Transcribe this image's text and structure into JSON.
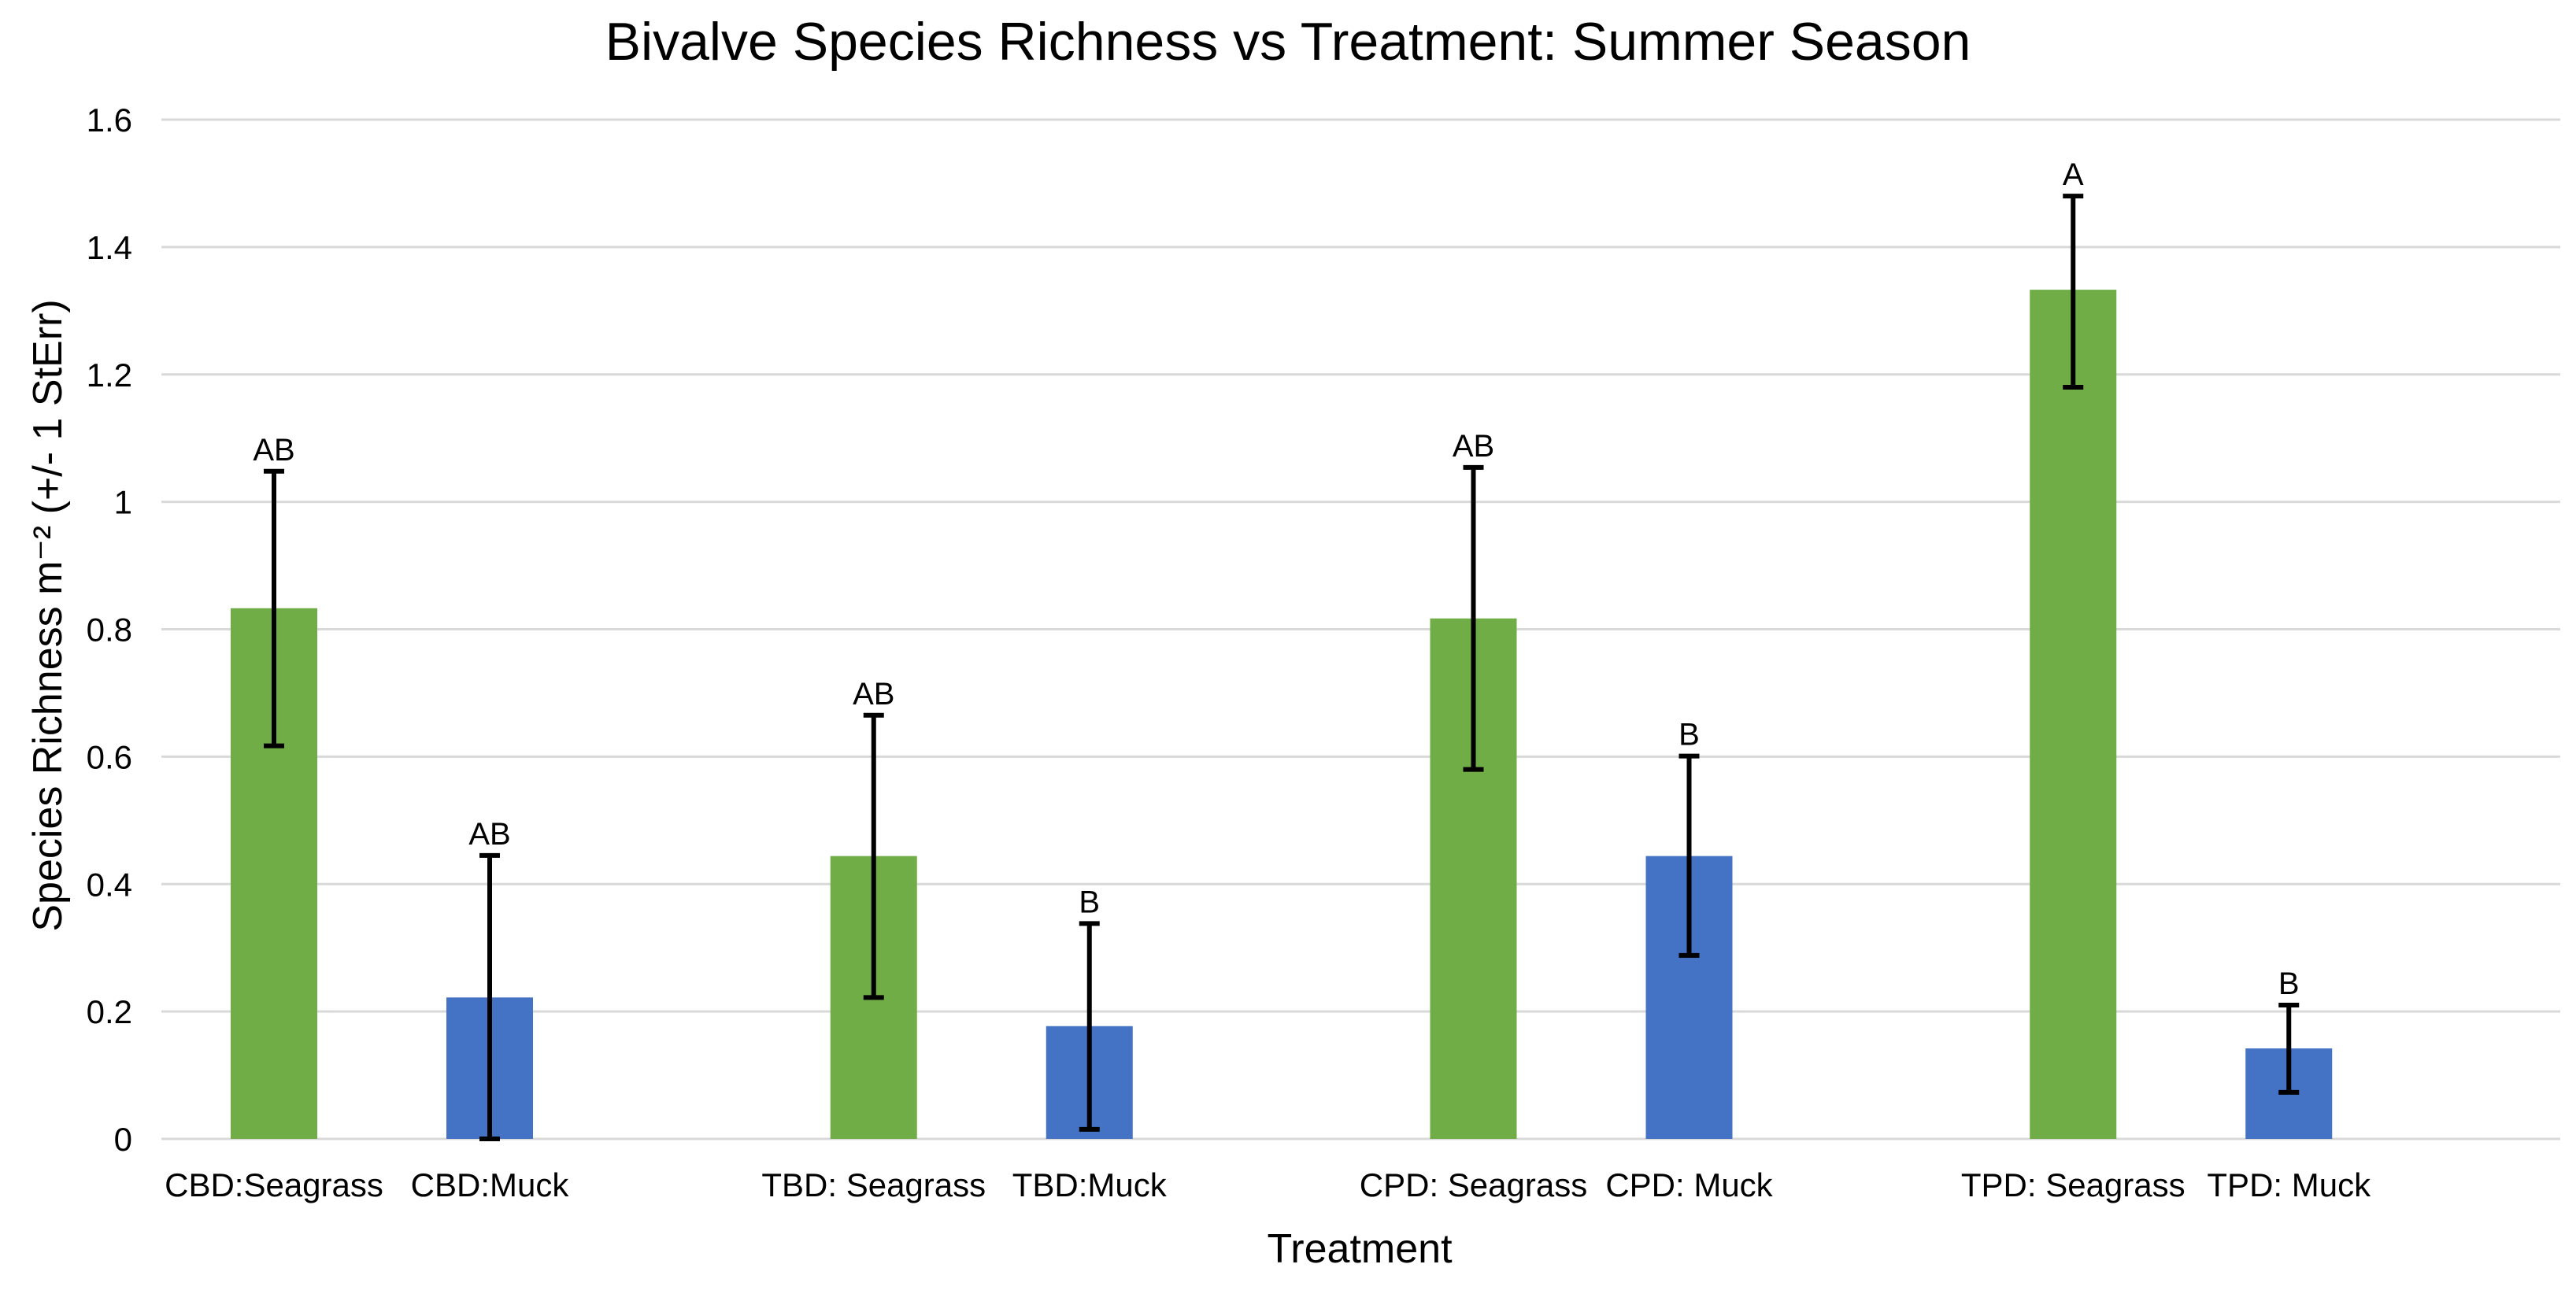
{
  "chart_data": {
    "type": "bar",
    "title": "Bivalve Species Richness vs Treatment: Summer Season",
    "xlabel": "Treatment",
    "ylabel": "Species Richness m⁻² (+/- 1 StErr)",
    "ylim": [
      0,
      1.6
    ],
    "yticks": [
      0,
      0.2,
      0.4,
      0.6,
      0.8,
      1,
      1.2,
      1.4,
      1.6
    ],
    "ytick_labels": [
      "0",
      "0.2",
      "0.4",
      "0.6",
      "0.8",
      "1",
      "1.2",
      "1.4",
      "1.6"
    ],
    "grid": true,
    "legend": "none",
    "colors": {
      "seagrass": "#70ad47",
      "muck": "#4472c4"
    },
    "groups": [
      {
        "name": "CBD",
        "bars": [
          {
            "category": "CBD:Seagrass",
            "type": "seagrass",
            "value": 0.833,
            "err_low": 0.617,
            "err_high": 1.048,
            "letter": "AB"
          },
          {
            "category": "CBD:Muck",
            "type": "muck",
            "value": 0.222,
            "err_low": 0.0,
            "err_high": 0.445,
            "letter": "AB"
          }
        ]
      },
      {
        "name": "TBD",
        "bars": [
          {
            "category": "TBD: Seagrass",
            "type": "seagrass",
            "value": 0.444,
            "err_low": 0.222,
            "err_high": 0.665,
            "letter": "AB"
          },
          {
            "category": "TBD:Muck",
            "type": "muck",
            "value": 0.177,
            "err_low": 0.015,
            "err_high": 0.338,
            "letter": "B"
          }
        ]
      },
      {
        "name": "CPD",
        "bars": [
          {
            "category": "CPD: Seagrass",
            "type": "seagrass",
            "value": 0.817,
            "err_low": 0.58,
            "err_high": 1.054,
            "letter": "AB"
          },
          {
            "category": "CPD: Muck",
            "type": "muck",
            "value": 0.444,
            "err_low": 0.288,
            "err_high": 0.601,
            "letter": "B"
          }
        ]
      },
      {
        "name": "TPD",
        "bars": [
          {
            "category": "TPD: Seagrass",
            "type": "seagrass",
            "value": 1.333,
            "err_low": 1.18,
            "err_high": 1.48,
            "letter": "A"
          },
          {
            "category": "TPD: Muck",
            "type": "muck",
            "value": 0.142,
            "err_low": 0.073,
            "err_high": 0.21,
            "letter": "B"
          }
        ]
      }
    ]
  }
}
